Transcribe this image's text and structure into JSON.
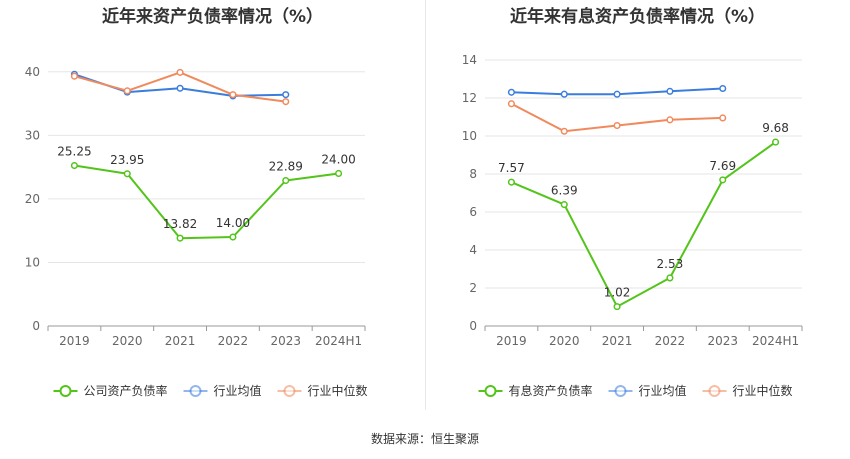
{
  "source": {
    "label": "数据来源：",
    "value": "恒生聚源"
  },
  "chart_data": [
    {
      "type": "line",
      "title": "近年来资产负债率情况（%）",
      "categories": [
        "2019",
        "2020",
        "2021",
        "2022",
        "2023",
        "2024H1"
      ],
      "ylim": [
        0,
        45
      ],
      "yticks": [
        0,
        10,
        20,
        30,
        40
      ],
      "grid": true,
      "legend_position": "bottom",
      "series": [
        {
          "name": "公司资产负债率",
          "color": "#52c41a",
          "values": [
            25.25,
            23.95,
            13.82,
            14.0,
            22.89,
            24.0
          ],
          "labels": [
            "25.25",
            "23.95",
            "13.82",
            "14.00",
            "22.89",
            "24.00"
          ]
        },
        {
          "name": "行业均值",
          "color": "#3b7ddd",
          "values": [
            39.6,
            36.8,
            37.4,
            36.2,
            36.4,
            null
          ]
        },
        {
          "name": "行业中位数",
          "color": "#f08a5d",
          "values": [
            39.3,
            37.0,
            39.9,
            36.4,
            35.3,
            null
          ]
        }
      ]
    },
    {
      "type": "line",
      "title": "近年来有息资产负债率情况（%）",
      "categories": [
        "2019",
        "2020",
        "2021",
        "2022",
        "2023",
        "2024H1"
      ],
      "ylim": [
        0,
        14
      ],
      "yticks": [
        0,
        2,
        4,
        6,
        8,
        10,
        12,
        14
      ],
      "grid": true,
      "legend_position": "bottom",
      "series": [
        {
          "name": "有息资产负债率",
          "color": "#52c41a",
          "values": [
            7.57,
            6.39,
            1.02,
            2.53,
            7.69,
            9.68
          ],
          "labels": [
            "7.57",
            "6.39",
            "1.02",
            "2.53",
            "7.69",
            "9.68"
          ]
        },
        {
          "name": "行业均值",
          "color": "#3b7ddd",
          "values": [
            12.3,
            12.2,
            12.2,
            12.35,
            12.5,
            null
          ]
        },
        {
          "name": "行业中位数",
          "color": "#f08a5d",
          "values": [
            11.7,
            10.25,
            10.55,
            10.85,
            10.95,
            null
          ]
        }
      ]
    }
  ]
}
